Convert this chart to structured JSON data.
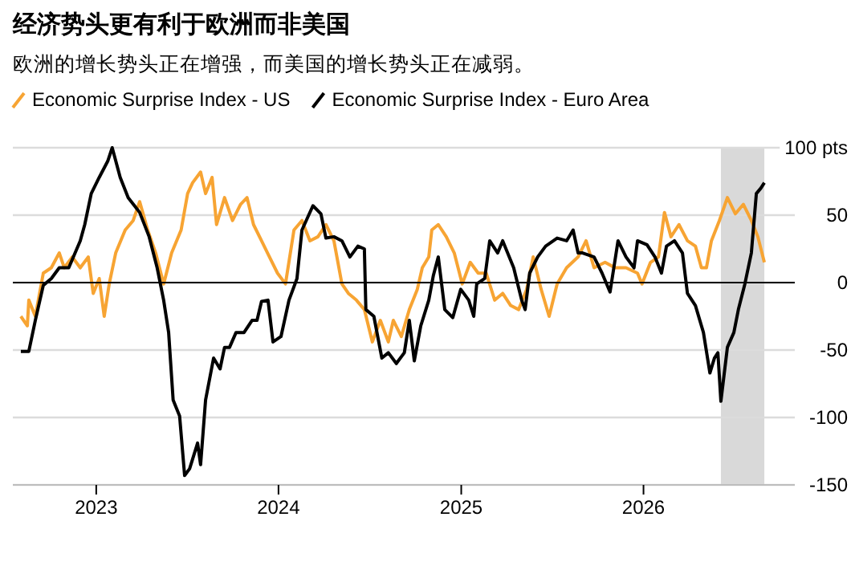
{
  "chart_data": {
    "type": "line",
    "title": "经济势头更有利于欧洲而非美国",
    "subtitle": "欧洲的增长势头正在增强，而美国的增长势头正在减弱。",
    "legend": "top",
    "grid": "y",
    "xlim": [
      "2022-07-18",
      "2026-10-31"
    ],
    "ylim": [
      -150,
      100
    ],
    "xticks": [
      {
        "value": "2023-01-01",
        "label": "2023"
      },
      {
        "value": "2024-01-01",
        "label": "2024"
      },
      {
        "value": "2025-01-01",
        "label": "2025"
      },
      {
        "value": "2026-01-01",
        "label": "2026"
      }
    ],
    "yticks": [
      -150,
      -100,
      -50,
      0,
      50,
      {
        "value": 100,
        "label": "100 pts"
      }
    ],
    "ref_lines": [
      {
        "axis": "y",
        "value": 0,
        "color": "#000000"
      }
    ],
    "bands": [
      {
        "axis": "x",
        "from": "2026-06-05",
        "to": "2026-08-31",
        "color": "#d9d9d9"
      }
    ],
    "series": [
      {
        "name": "Economic Surprise Index - US",
        "color": "#f7a433",
        "x": [
          "2022-08-03",
          "2022-08-16",
          "2022-08-19",
          "2022-09-01",
          "2022-09-17",
          "2022-10-03",
          "2022-10-19",
          "2022-10-29",
          "2022-11-14",
          "2022-11-30",
          "2022-12-16",
          "2022-12-26",
          "2023-01-07",
          "2023-01-17",
          "2023-01-27",
          "2023-02-09",
          "2023-02-28",
          "2023-03-16",
          "2023-03-29",
          "2023-04-14",
          "2023-04-30",
          "2023-05-16",
          "2023-06-01",
          "2023-06-20",
          "2023-07-03",
          "2023-07-13",
          "2023-07-29",
          "2023-08-08",
          "2023-08-21",
          "2023-08-30",
          "2023-09-15",
          "2023-10-01",
          "2023-10-17",
          "2023-10-30",
          "2023-11-12",
          "2023-11-28",
          "2023-12-14",
          "2023-12-30",
          "2024-01-15",
          "2024-02-01",
          "2024-02-17",
          "2024-03-04",
          "2024-03-20",
          "2024-04-05",
          "2024-04-21",
          "2024-05-07",
          "2024-05-20",
          "2024-06-05",
          "2024-06-21",
          "2024-07-07",
          "2024-07-23",
          "2024-08-08",
          "2024-08-18",
          "2024-09-03",
          "2024-09-19",
          "2024-10-05",
          "2024-10-15",
          "2024-10-28",
          "2024-11-03",
          "2024-11-16",
          "2024-12-02",
          "2024-12-18",
          "2025-01-03",
          "2025-01-19",
          "2025-02-04",
          "2025-02-20",
          "2025-03-09",
          "2025-03-25",
          "2025-04-10",
          "2025-04-26",
          "2025-05-12",
          "2025-05-25",
          "2025-06-10",
          "2025-06-26",
          "2025-07-12",
          "2025-07-31",
          "2025-08-23",
          "2025-09-08",
          "2025-09-24",
          "2025-10-16",
          "2025-11-05",
          "2025-11-27",
          "2025-12-20",
          "2025-12-29",
          "2026-01-15",
          "2026-01-31",
          "2026-02-12",
          "2026-02-25",
          "2026-03-13",
          "2026-03-30",
          "2026-04-15",
          "2026-04-27",
          "2026-05-07",
          "2026-05-17",
          "2026-06-02",
          "2026-06-18",
          "2026-07-04",
          "2026-07-20",
          "2026-08-05",
          "2026-08-18",
          "2026-08-31"
        ],
        "values": [
          -25,
          -32,
          -13,
          -25,
          7,
          11,
          22,
          11,
          19,
          11,
          19,
          -8,
          3,
          -25,
          -1,
          22,
          39,
          46,
          60,
          39,
          22,
          -1,
          22,
          39,
          66,
          74,
          82,
          66,
          78,
          43,
          63,
          46,
          58,
          63,
          43,
          31,
          19,
          7,
          -1,
          39,
          46,
          31,
          34,
          43,
          31,
          -1,
          -8,
          -13,
          -20,
          -44,
          -28,
          -44,
          -28,
          -40,
          -20,
          -5,
          11,
          19,
          39,
          43,
          34,
          22,
          -1,
          15,
          7,
          7,
          -13,
          -8,
          -17,
          -20,
          -5,
          19,
          -5,
          -25,
          -1,
          11,
          19,
          31,
          11,
          15,
          11,
          11,
          7,
          -1,
          15,
          19,
          52,
          34,
          43,
          31,
          27,
          11,
          11,
          31,
          46,
          63,
          51,
          58,
          46,
          34,
          15
        ]
      },
      {
        "name": "Economic Surprise Index - Euro Area",
        "color": "#000000",
        "x": [
          "2022-08-03",
          "2022-08-19",
          "2022-09-01",
          "2022-09-17",
          "2022-10-03",
          "2022-10-19",
          "2022-11-07",
          "2022-11-30",
          "2022-12-09",
          "2022-12-22",
          "2023-01-07",
          "2023-01-24",
          "2023-02-02",
          "2023-02-18",
          "2023-03-06",
          "2023-03-29",
          "2023-04-17",
          "2023-05-03",
          "2023-05-16",
          "2023-05-26",
          "2023-06-04",
          "2023-06-17",
          "2023-06-27",
          "2023-07-07",
          "2023-07-23",
          "2023-07-29",
          "2023-08-08",
          "2023-08-24",
          "2023-09-06",
          "2023-09-15",
          "2023-09-25",
          "2023-10-08",
          "2023-10-24",
          "2023-11-09",
          "2023-11-19",
          "2023-11-28",
          "2023-12-11",
          "2023-12-21",
          "2024-01-06",
          "2024-01-22",
          "2024-02-07",
          "2024-02-17",
          "2024-03-10",
          "2024-03-26",
          "2024-04-05",
          "2024-04-21",
          "2024-05-07",
          "2024-05-23",
          "2024-06-08",
          "2024-06-21",
          "2024-06-24",
          "2024-07-10",
          "2024-07-26",
          "2024-08-08",
          "2024-08-24",
          "2024-09-09",
          "2024-09-19",
          "2024-09-29",
          "2024-10-12",
          "2024-10-28",
          "2024-11-06",
          "2024-11-16",
          "2024-11-29",
          "2024-12-15",
          "2024-12-31",
          "2025-01-16",
          "2025-01-26",
          "2025-02-01",
          "2025-02-17",
          "2025-02-27",
          "2025-03-15",
          "2025-03-25",
          "2025-04-16",
          "2025-05-02",
          "2025-05-09",
          "2025-05-18",
          "2025-06-03",
          "2025-06-19",
          "2025-07-12",
          "2025-07-31",
          "2025-08-13",
          "2025-08-23",
          "2025-09-01",
          "2025-09-24",
          "2025-10-10",
          "2025-10-26",
          "2025-11-11",
          "2025-11-27",
          "2025-12-13",
          "2025-12-20",
          "2026-01-08",
          "2026-01-24",
          "2026-02-06",
          "2026-02-16",
          "2026-03-04",
          "2026-03-20",
          "2026-03-30",
          "2026-04-15",
          "2026-05-01",
          "2026-05-14",
          "2026-05-23",
          "2026-05-30",
          "2026-06-05",
          "2026-06-18",
          "2026-07-01",
          "2026-07-10",
          "2026-07-23",
          "2026-08-05",
          "2026-08-15",
          "2026-08-24",
          "2026-08-31"
        ],
        "values": [
          -51,
          -51,
          -28,
          -2,
          3,
          11,
          11,
          31,
          43,
          66,
          78,
          90,
          100,
          78,
          63,
          52,
          34,
          11,
          -13,
          -37,
          -87,
          -99,
          -143,
          -138,
          -119,
          -135,
          -87,
          -56,
          -64,
          -48,
          -48,
          -37,
          -37,
          -28,
          -28,
          -14,
          -13,
          -44,
          -40,
          -13,
          3,
          39,
          57,
          51,
          33,
          34,
          31,
          19,
          27,
          25,
          -20,
          -25,
          -56,
          -52,
          -60,
          -52,
          -28,
          -58,
          -32,
          -13,
          5,
          19,
          -20,
          -26,
          -5,
          -13,
          -25,
          -1,
          3,
          31,
          22,
          31,
          11,
          -13,
          -20,
          7,
          19,
          27,
          33,
          31,
          39,
          22,
          22,
          19,
          7,
          -7,
          31,
          19,
          11,
          31,
          28,
          19,
          7,
          27,
          31,
          22,
          -8,
          -17,
          -37,
          -67,
          -56,
          -52,
          -88,
          -48,
          -37,
          -20,
          -1,
          22,
          66,
          70,
          74
        ]
      }
    ]
  }
}
